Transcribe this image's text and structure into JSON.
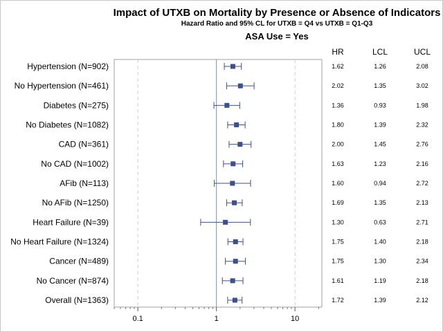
{
  "chart_data": {
    "type": "forest",
    "title": "Impact of UTXB on Mortality by Presence or Absence of Indicators",
    "subtitle": "Hazard Ratio and 95% CL for UTXB = Q4 vs UTXB = Q1-Q3",
    "subtitle2": "ASA Use = Yes",
    "x_scale": "log",
    "xlim": [
      0.05,
      22
    ],
    "x_ticks": [
      0.1,
      1,
      10
    ],
    "x_tick_labels": [
      "0.1",
      "1",
      "10"
    ],
    "reference_line": 1,
    "column_headers": [
      "HR",
      "LCL",
      "UCL"
    ],
    "rows": [
      {
        "label": "Hypertension (N=902)",
        "hr": 1.62,
        "lcl": 1.26,
        "ucl": 2.08,
        "hr_text": "1.62",
        "lcl_text": "1.26",
        "ucl_text": "2.08"
      },
      {
        "label": "No Hypertension (N=461)",
        "hr": 2.02,
        "lcl": 1.35,
        "ucl": 3.02,
        "hr_text": "2.02",
        "lcl_text": "1.35",
        "ucl_text": "3.02"
      },
      {
        "label": "Diabetes (N=275)",
        "hr": 1.36,
        "lcl": 0.93,
        "ucl": 1.98,
        "hr_text": "1.36",
        "lcl_text": "0.93",
        "ucl_text": "1.98"
      },
      {
        "label": "No Diabetes (N=1082)",
        "hr": 1.8,
        "lcl": 1.39,
        "ucl": 2.32,
        "hr_text": "1.80",
        "lcl_text": "1.39",
        "ucl_text": "2.32"
      },
      {
        "label": "CAD (N=361)",
        "hr": 2.0,
        "lcl": 1.45,
        "ucl": 2.76,
        "hr_text": "2.00",
        "lcl_text": "1.45",
        "ucl_text": "2.76"
      },
      {
        "label": "No CAD (N=1002)",
        "hr": 1.63,
        "lcl": 1.23,
        "ucl": 2.16,
        "hr_text": "1.63",
        "lcl_text": "1.23",
        "ucl_text": "2.16"
      },
      {
        "label": "AFib (N=113)",
        "hr": 1.6,
        "lcl": 0.94,
        "ucl": 2.72,
        "hr_text": "1.60",
        "lcl_text": "0.94",
        "ucl_text": "2.72"
      },
      {
        "label": "No AFib (N=1250)",
        "hr": 1.69,
        "lcl": 1.35,
        "ucl": 2.13,
        "hr_text": "1.69",
        "lcl_text": "1.35",
        "ucl_text": "2.13"
      },
      {
        "label": "Heart Failure (N=39)",
        "hr": 1.3,
        "lcl": 0.63,
        "ucl": 2.71,
        "hr_text": "1.30",
        "lcl_text": "0.63",
        "ucl_text": "2.71"
      },
      {
        "label": "No Heart Failure (N=1324)",
        "hr": 1.75,
        "lcl": 1.4,
        "ucl": 2.18,
        "hr_text": "1.75",
        "lcl_text": "1.40",
        "ucl_text": "2.18"
      },
      {
        "label": "Cancer (N=489)",
        "hr": 1.75,
        "lcl": 1.3,
        "ucl": 2.34,
        "hr_text": "1.75",
        "lcl_text": "1.30",
        "ucl_text": "2.34"
      },
      {
        "label": "No Cancer (N=874)",
        "hr": 1.61,
        "lcl": 1.19,
        "ucl": 2.18,
        "hr_text": "1.61",
        "lcl_text": "1.19",
        "ucl_text": "2.18"
      },
      {
        "label": "Overall (N=1363)",
        "hr": 1.72,
        "lcl": 1.39,
        "ucl": 2.12,
        "hr_text": "1.72",
        "lcl_text": "1.39",
        "ucl_text": "2.12"
      }
    ],
    "colors": {
      "marker": "#3c4f8f",
      "whisker": "#3c4f8f",
      "reference": "#7f8fa8",
      "grid": "#cfcfcf",
      "border": "#a0a0a0"
    },
    "grid": "dashed vertical at 0.1 and 10",
    "legend": "none"
  }
}
